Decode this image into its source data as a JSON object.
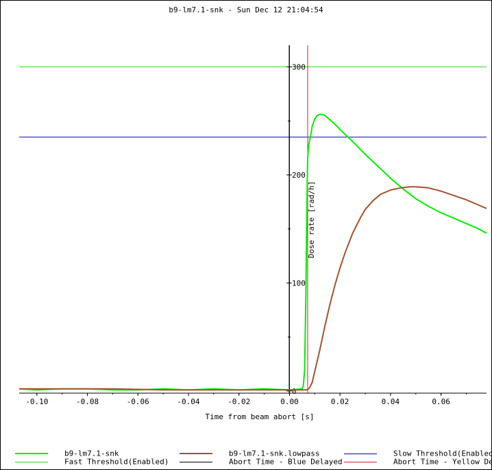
{
  "chart_data": {
    "type": "line",
    "title": "b9-lm7.1-snk - Sun Dec 12 21:04:54",
    "xlabel": "Time from beam abort [s]",
    "ylabel": "Dose rate [rad/h]",
    "xlim": [
      -0.107,
      0.078
    ],
    "ylim": [
      -2,
      320
    ],
    "x_ticks": [
      "-0.10",
      "-0.08",
      "-0.06",
      "-0.04",
      "-0.02",
      "0.00",
      "0.02",
      "0.04",
      "0.06"
    ],
    "x_tick_values": [
      -0.1,
      -0.08,
      -0.06,
      -0.04,
      -0.02,
      0.0,
      0.02,
      0.04,
      0.06
    ],
    "y_ticks": [
      "0",
      "100",
      "200",
      "300"
    ],
    "y_tick_values": [
      0,
      100,
      200,
      300
    ],
    "grid": false,
    "legend_placement": "bottom",
    "series": [
      {
        "name": "b9-lm7.1-snk",
        "color": "#00ee00",
        "x": [
          -0.107,
          -0.1,
          -0.09,
          -0.08,
          -0.07,
          -0.06,
          -0.05,
          -0.04,
          -0.03,
          -0.02,
          -0.01,
          0.0,
          0.005,
          0.0055,
          0.006,
          0.0065,
          0.0068,
          0.007,
          0.0072,
          0.0075,
          0.008,
          0.0085,
          0.009,
          0.01,
          0.011,
          0.012,
          0.013,
          0.014,
          0.016,
          0.018,
          0.02,
          0.025,
          0.03,
          0.035,
          0.04,
          0.045,
          0.05,
          0.055,
          0.06,
          0.065,
          0.07,
          0.075,
          0.078
        ],
        "y": [
          2,
          1,
          2,
          2,
          1,
          1,
          2,
          1,
          2,
          1,
          2,
          1,
          2,
          5,
          20,
          90,
          150,
          190,
          215,
          225,
          232,
          238,
          245,
          252,
          255,
          256,
          256,
          255,
          251,
          247,
          242,
          231,
          219,
          208,
          197,
          187,
          178,
          171,
          165,
          160,
          155,
          150,
          146
        ]
      },
      {
        "name": "b9-lm7.1-snk.lowpass",
        "color": "#a0522d",
        "x": [
          -0.107,
          -0.09,
          -0.07,
          -0.05,
          -0.03,
          -0.01,
          0.0,
          0.005,
          0.007,
          0.008,
          0.009,
          0.01,
          0.012,
          0.014,
          0.016,
          0.018,
          0.02,
          0.022,
          0.025,
          0.028,
          0.03,
          0.033,
          0.036,
          0.04,
          0.044,
          0.048,
          0.05,
          0.055,
          0.06,
          0.065,
          0.07,
          0.075,
          0.078
        ],
        "y": [
          2,
          2,
          2,
          1,
          1,
          1,
          1,
          1,
          1,
          3,
          8,
          18,
          38,
          60,
          80,
          98,
          114,
          128,
          146,
          160,
          168,
          176,
          182,
          186,
          188,
          189,
          189,
          188,
          185,
          181,
          177,
          172,
          169
        ]
      }
    ],
    "reference_lines": [
      {
        "name": "Fast Threshold(Enabled)",
        "orientation": "horizontal",
        "value": 300,
        "color": "#22dd22"
      },
      {
        "name": "Slow Threshold(Enabled)",
        "orientation": "horizontal",
        "value": 235,
        "color": "#0000bb"
      },
      {
        "name": "Abort Time - Blue Delayed",
        "orientation": "vertical",
        "value": 0.0,
        "color": "#000000"
      },
      {
        "name": "Abort Time - Yellow Delayed",
        "orientation": "vertical",
        "value": 0.0072,
        "color": "#cc2222"
      }
    ],
    "legend": [
      {
        "label": "b9-lm7.1-snk",
        "color": "#00ee00",
        "thick": true
      },
      {
        "label": "b9-lm7.1-snk.lowpass",
        "color": "#a0522d",
        "thick": true
      },
      {
        "label": "Slow Threshold(Enabled)",
        "color": "#0000bb",
        "thick": false
      },
      {
        "label": "Fast Threshold(Enabled)",
        "color": "#22dd22",
        "thick": false
      },
      {
        "label": "Abort Time - Blue Delayed",
        "color": "#000000",
        "thick": false
      },
      {
        "label": "Abort Time - Yellow Delayed",
        "color": "#cc2222",
        "thick": false
      }
    ]
  }
}
